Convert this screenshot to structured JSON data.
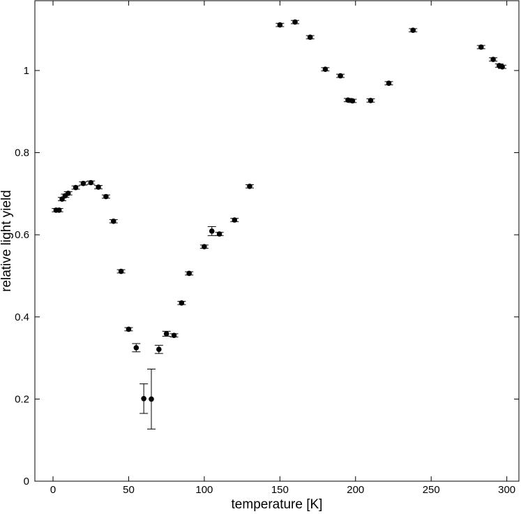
{
  "chart_data": {
    "type": "scatter",
    "xlabel": "temperature [K]",
    "ylabel": "relative light yield",
    "xlim": [
      -12,
      308
    ],
    "ylim": [
      0,
      1.17
    ],
    "xticks": [
      0,
      50,
      100,
      150,
      200,
      250,
      300
    ],
    "yticks": [
      0,
      0.2,
      0.4,
      0.6,
      0.8,
      1
    ],
    "xtick_labels": [
      "0",
      "50",
      "100",
      "150",
      "200",
      "250",
      "300"
    ],
    "ytick_labels": [
      "0",
      "0.2",
      "0.4",
      "0.6",
      "0.8",
      "1"
    ],
    "grid": false,
    "legend": "none",
    "marker_color": "#000000",
    "series": [
      {
        "points": [
          {
            "x": 2,
            "y": 0.66,
            "err": 0.004
          },
          {
            "x": 4,
            "y": 0.66,
            "err": 0.004
          },
          {
            "x": 6,
            "y": 0.687,
            "err": 0.004
          },
          {
            "x": 8,
            "y": 0.695,
            "err": 0.004
          },
          {
            "x": 10,
            "y": 0.701,
            "err": 0.004
          },
          {
            "x": 15,
            "y": 0.715,
            "err": 0.004
          },
          {
            "x": 20,
            "y": 0.725,
            "err": 0.004
          },
          {
            "x": 25,
            "y": 0.727,
            "err": 0.004
          },
          {
            "x": 30,
            "y": 0.716,
            "err": 0.004
          },
          {
            "x": 35,
            "y": 0.693,
            "err": 0.004
          },
          {
            "x": 40,
            "y": 0.633,
            "err": 0.004
          },
          {
            "x": 45,
            "y": 0.511,
            "err": 0.004
          },
          {
            "x": 50,
            "y": 0.37,
            "err": 0.004
          },
          {
            "x": 55,
            "y": 0.325,
            "err": 0.01
          },
          {
            "x": 60,
            "y": 0.201,
            "err": 0.036
          },
          {
            "x": 65,
            "y": 0.2,
            "err": 0.073
          },
          {
            "x": 70,
            "y": 0.321,
            "err": 0.01
          },
          {
            "x": 75,
            "y": 0.359,
            "err": 0.006
          },
          {
            "x": 80,
            "y": 0.355,
            "err": 0.004
          },
          {
            "x": 85,
            "y": 0.434,
            "err": 0.004
          },
          {
            "x": 90,
            "y": 0.506,
            "err": 0.004
          },
          {
            "x": 100,
            "y": 0.571,
            "err": 0.004
          },
          {
            "x": 105,
            "y": 0.609,
            "err": 0.011
          },
          {
            "x": 110,
            "y": 0.602,
            "err": 0.004
          },
          {
            "x": 120,
            "y": 0.636,
            "err": 0.004
          },
          {
            "x": 130,
            "y": 0.718,
            "err": 0.004
          },
          {
            "x": 150,
            "y": 1.111,
            "err": 0.004
          },
          {
            "x": 160,
            "y": 1.118,
            "err": 0.004
          },
          {
            "x": 170,
            "y": 1.081,
            "err": 0.004
          },
          {
            "x": 180,
            "y": 1.003,
            "err": 0.004
          },
          {
            "x": 190,
            "y": 0.987,
            "err": 0.004
          },
          {
            "x": 195,
            "y": 0.928,
            "err": 0.004
          },
          {
            "x": 198,
            "y": 0.926,
            "err": 0.004
          },
          {
            "x": 210,
            "y": 0.927,
            "err": 0.004
          },
          {
            "x": 222,
            "y": 0.969,
            "err": 0.004
          },
          {
            "x": 238,
            "y": 1.098,
            "err": 0.004
          },
          {
            "x": 283,
            "y": 1.057,
            "err": 0.004
          },
          {
            "x": 291,
            "y": 1.027,
            "err": 0.004
          },
          {
            "x": 295,
            "y": 1.012,
            "err": 0.004
          },
          {
            "x": 297,
            "y": 1.009,
            "err": 0.004
          }
        ]
      }
    ]
  }
}
